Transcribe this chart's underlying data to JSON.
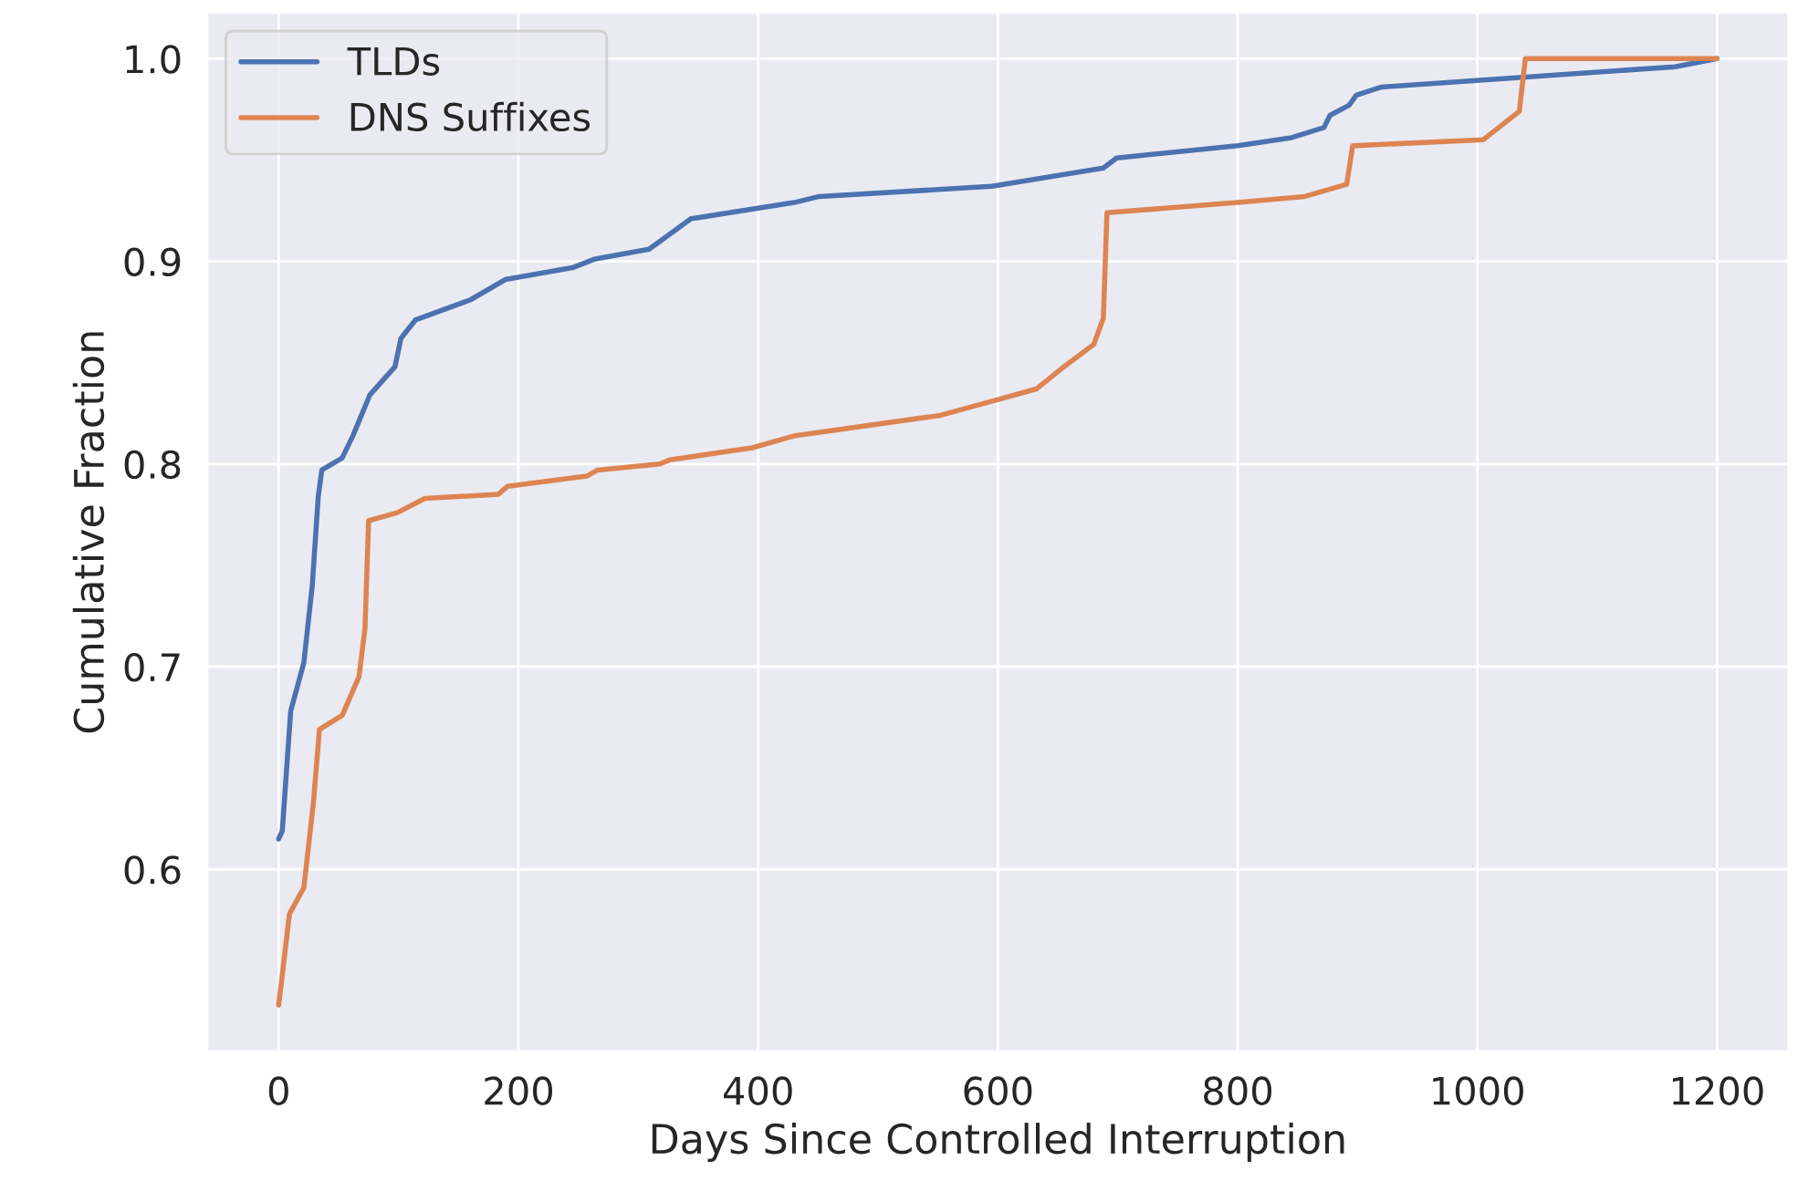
{
  "chart_data": {
    "type": "line",
    "xlabel": "Days Since Controlled Interruption",
    "ylabel": "Cumulative Fraction",
    "xlim": [
      -60,
      1260
    ],
    "ylim": [
      0.51,
      1.023
    ],
    "xticks": [
      0,
      200,
      400,
      600,
      800,
      1000,
      1200
    ],
    "yticks": [
      0.6,
      0.7,
      0.8,
      0.9,
      {
        "value": 1,
        "label": "1.0"
      }
    ],
    "grid": true,
    "legend": "top left",
    "line_style": "solid",
    "marker": "none",
    "series": [
      {
        "name": "TLDs",
        "color": "#4c72b0",
        "x": [
          0,
          3,
          10,
          21,
          28,
          33,
          36,
          53,
          62,
          76,
          97,
          102,
          114,
          160,
          189,
          246,
          263,
          309,
          344,
          430,
          451,
          595,
          688,
          699,
          800,
          845,
          872,
          877,
          893,
          899,
          920,
          1165,
          1200
        ],
        "values": [
          0.615,
          0.619,
          0.678,
          0.702,
          0.74,
          0.784,
          0.797,
          0.803,
          0.814,
          0.834,
          0.848,
          0.862,
          0.871,
          0.881,
          0.891,
          0.897,
          0.901,
          0.906,
          0.921,
          0.929,
          0.932,
          0.937,
          0.946,
          0.951,
          0.957,
          0.961,
          0.966,
          0.972,
          0.977,
          0.982,
          0.986,
          0.996,
          1.0
        ]
      },
      {
        "name": "DNS Suffixes",
        "color": "#dd8452",
        "x": [
          0,
          3,
          9,
          21,
          29,
          34,
          53,
          67,
          72,
          75,
          99,
          122,
          183,
          191,
          257,
          266,
          318,
          326,
          395,
          431,
          552,
          589,
          632,
          653,
          680,
          688,
          691,
          800,
          856,
          891,
          896,
          1005,
          1035,
          1040,
          1200
        ],
        "values": [
          0.533,
          0.548,
          0.578,
          0.591,
          0.633,
          0.669,
          0.676,
          0.695,
          0.719,
          0.772,
          0.776,
          0.783,
          0.785,
          0.789,
          0.794,
          0.797,
          0.8,
          0.802,
          0.808,
          0.814,
          0.824,
          0.83,
          0.837,
          0.847,
          0.859,
          0.872,
          0.924,
          0.929,
          0.932,
          0.938,
          0.957,
          0.96,
          0.974,
          1.0,
          1.0
        ]
      }
    ]
  }
}
